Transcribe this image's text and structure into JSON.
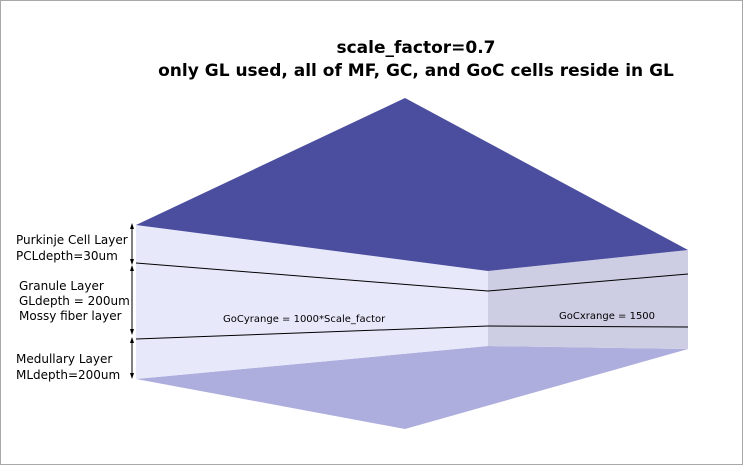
{
  "title": {
    "line1": "scale_factor=0.7",
    "line2": "only GL used, all of MF, GC, and GoC cells reside in GL"
  },
  "layers": {
    "purkinje": {
      "name": "Purkinje Cell Layer",
      "depth": "PCLdepth=30um"
    },
    "granule": {
      "name": "Granule Layer",
      "depth": "GLdepth = 200um",
      "extra": "Mossy fiber layer"
    },
    "medullary": {
      "name": "Medullary Layer",
      "depth": "MLdepth=200um"
    }
  },
  "ranges": {
    "goc_y": "GoCyrange = 1000*Scale_factor",
    "goc_x": "GoCxrange = 1500"
  },
  "colors": {
    "top_face": "#4b4d9e",
    "front_face": "#e8e8fb",
    "side_face": "#cdcde4",
    "bottom_face": "#adadde",
    "frame_border": "#a8a8a8"
  }
}
